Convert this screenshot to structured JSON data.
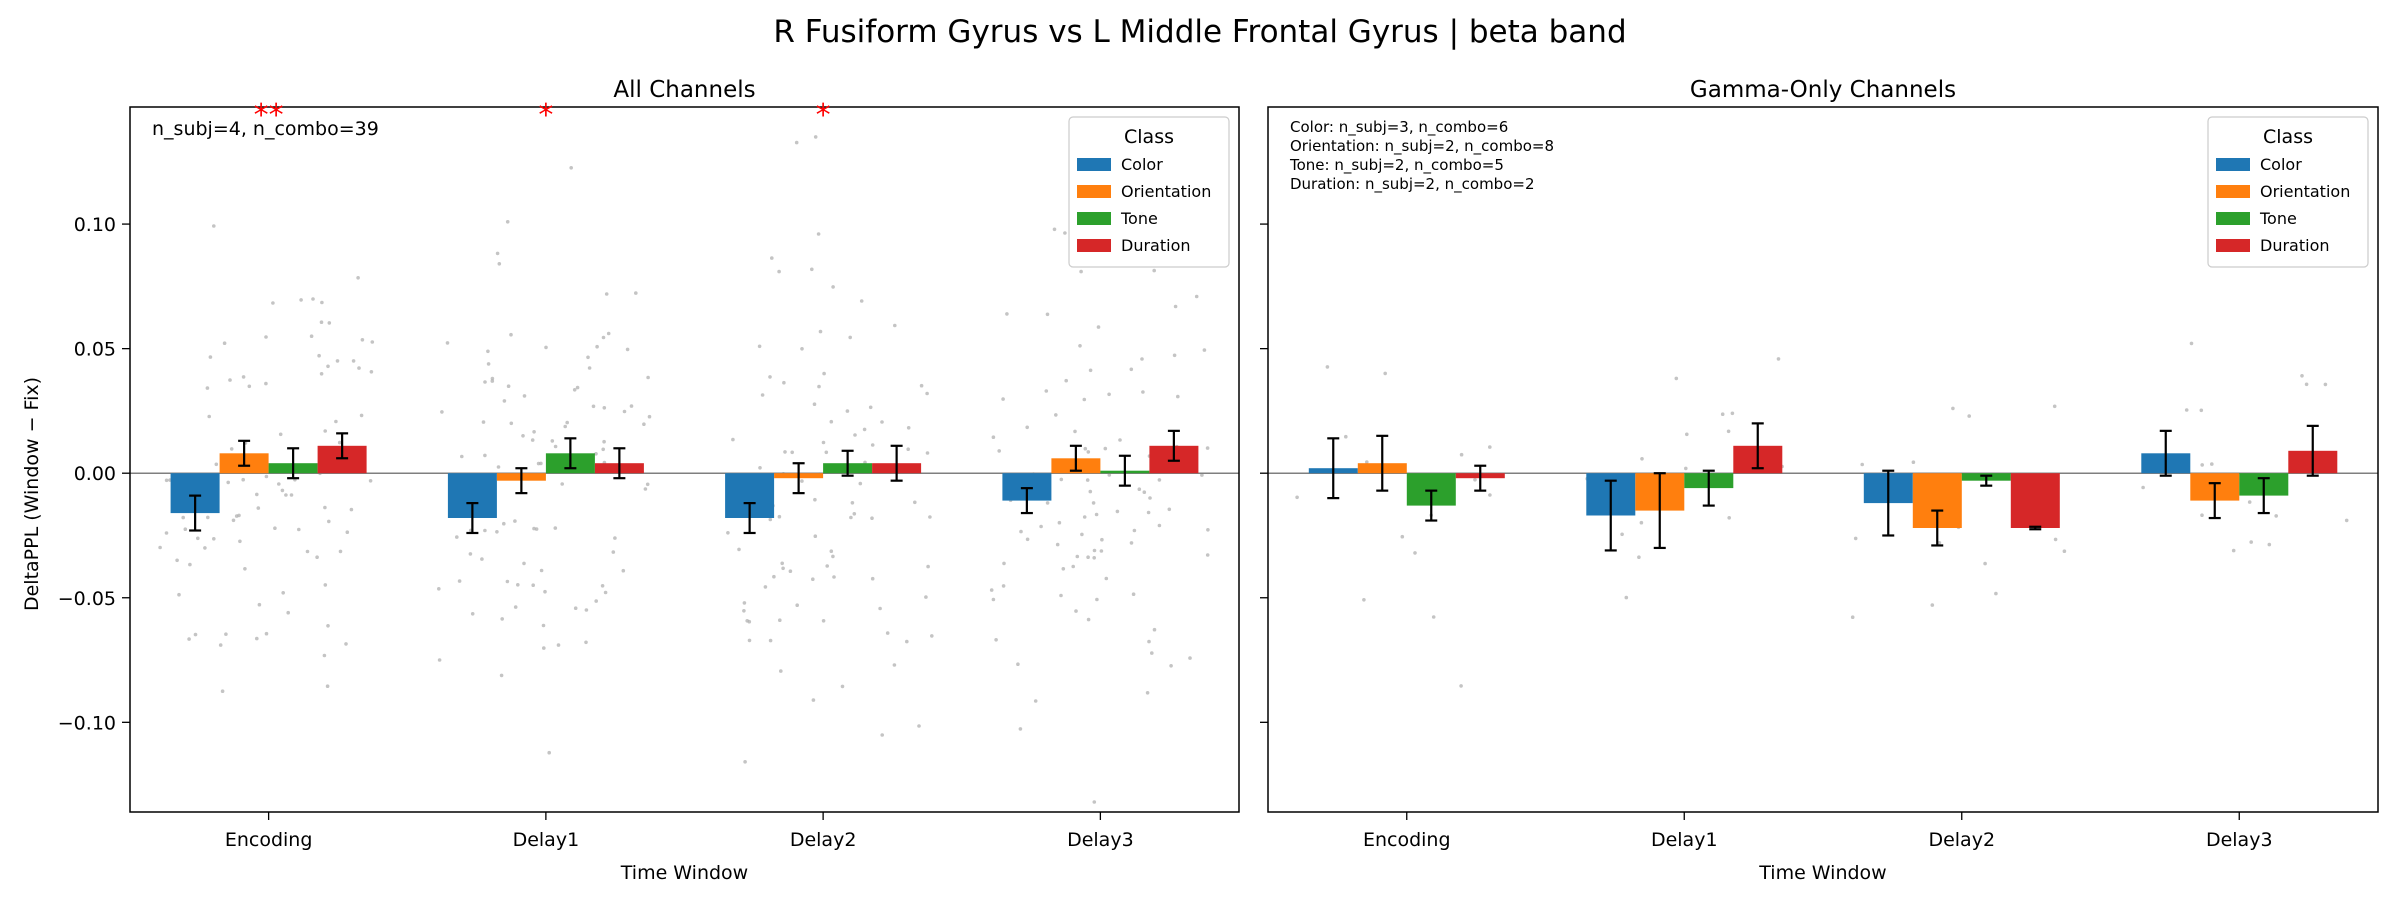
{
  "figure": {
    "title": "R Fusiform Gyrus vs L Middle Frontal Gyrus  |  beta band",
    "ylabel": "DeltaPPL (Window − Fix)"
  },
  "legend_title": "Class",
  "colors": {
    "Color": "#1f77b4",
    "Orientation": "#ff7f0e",
    "Tone": "#2ca02c",
    "Duration": "#d62728",
    "points": "#b0b0b0",
    "significance": "#ff0000"
  },
  "chart_data": [
    {
      "type": "bar",
      "title": "All Channels",
      "xlabel": "Time Window",
      "ylabel": "DeltaPPL (Window − Fix)",
      "categories": [
        "Encoding",
        "Delay1",
        "Delay2",
        "Delay3"
      ],
      "ylim": [
        -0.136,
        0.147
      ],
      "yticks": [
        -0.1,
        -0.05,
        0.0,
        0.05,
        0.1
      ],
      "ytick_labels": [
        "−0.10",
        "−0.05",
        "0.00",
        "0.05",
        "0.10"
      ],
      "legend_position": "upper right",
      "annotation": "n_subj=4, n_combo=39",
      "significance": [
        {
          "category": "Encoding",
          "label": "**"
        },
        {
          "category": "Delay1",
          "label": "*"
        },
        {
          "category": "Delay2",
          "label": "*"
        }
      ],
      "series": [
        {
          "name": "Color",
          "values": [
            -0.016,
            -0.018,
            -0.018,
            -0.011
          ],
          "errors": [
            0.007,
            0.006,
            0.006,
            0.005
          ]
        },
        {
          "name": "Orientation",
          "values": [
            0.008,
            -0.003,
            -0.002,
            0.006
          ],
          "errors": [
            0.005,
            0.005,
            0.006,
            0.005
          ]
        },
        {
          "name": "Tone",
          "values": [
            0.004,
            0.008,
            0.004,
            0.001
          ],
          "errors": [
            0.006,
            0.006,
            0.005,
            0.006
          ]
        },
        {
          "name": "Duration",
          "values": [
            0.011,
            0.004,
            0.004,
            0.011
          ],
          "errors": [
            0.005,
            0.006,
            0.007,
            0.006
          ]
        }
      ]
    },
    {
      "type": "bar",
      "title": "Gamma-Only Channels",
      "xlabel": "Time Window",
      "ylabel": "",
      "categories": [
        "Encoding",
        "Delay1",
        "Delay2",
        "Delay3"
      ],
      "ylim": [
        -0.136,
        0.147
      ],
      "yticks": [
        -0.1,
        -0.05,
        0.0,
        0.05,
        0.1
      ],
      "ytick_labels": [],
      "legend_position": "upper right",
      "annotation_lines": [
        "Color: n_subj=3, n_combo=6",
        "Orientation: n_subj=2, n_combo=8",
        "Tone: n_subj=2, n_combo=5",
        "Duration: n_subj=2, n_combo=2"
      ],
      "significance": [],
      "series": [
        {
          "name": "Color",
          "values": [
            0.002,
            -0.017,
            -0.012,
            0.008
          ],
          "errors": [
            0.012,
            0.014,
            0.013,
            0.009
          ]
        },
        {
          "name": "Orientation",
          "values": [
            0.004,
            -0.015,
            -0.022,
            -0.011
          ],
          "errors": [
            0.011,
            0.015,
            0.007,
            0.007
          ]
        },
        {
          "name": "Tone",
          "values": [
            -0.013,
            -0.006,
            -0.003,
            -0.009
          ],
          "errors": [
            0.006,
            0.007,
            0.002,
            0.007
          ]
        },
        {
          "name": "Duration",
          "values": [
            -0.002,
            0.011,
            -0.022,
            0.009
          ],
          "errors": [
            0.005,
            0.009,
            0.0005,
            0.01
          ]
        }
      ]
    }
  ]
}
